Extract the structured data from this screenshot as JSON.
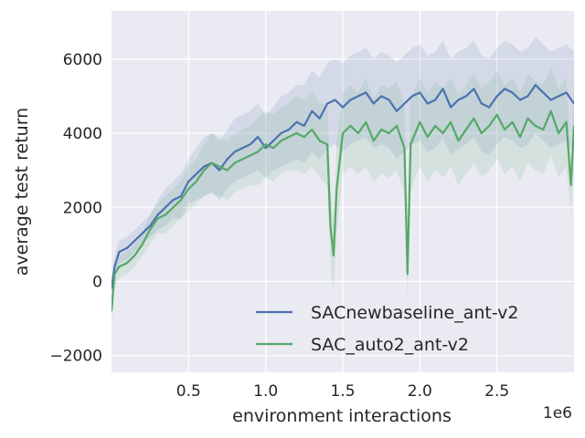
{
  "chart_data": {
    "type": "line",
    "xlabel": "environment interactions",
    "ylabel": "average test return",
    "x_offset_label": "1e6",
    "xlim": [
      0.0,
      3.0
    ],
    "ylim": [
      -2450,
      7300
    ],
    "x_ticks": [
      0.5,
      1.0,
      1.5,
      2.0,
      2.5
    ],
    "x_tick_labels": [
      "0.5",
      "1.0",
      "1.5",
      "2.0",
      "2.5"
    ],
    "y_ticks": [
      -2000,
      0,
      2000,
      4000,
      6000
    ],
    "y_tick_labels": [
      "−2000",
      "0",
      "2000",
      "4000",
      "6000"
    ],
    "grid": true,
    "legend_position": "lower-right",
    "colors": {
      "background": "#eaeaf2",
      "grid": "#ffffff",
      "SACnewbaseline_ant-v2": "#4c72b0",
      "SAC_auto2_ant-v2": "#55a868"
    },
    "series": [
      {
        "name": "SACnewbaseline_ant-v2",
        "color": "#4c72b0",
        "x": [
          0.0,
          0.02,
          0.05,
          0.1,
          0.15,
          0.2,
          0.25,
          0.3,
          0.35,
          0.4,
          0.45,
          0.5,
          0.55,
          0.6,
          0.65,
          0.7,
          0.75,
          0.8,
          0.85,
          0.9,
          0.95,
          1.0,
          1.05,
          1.1,
          1.15,
          1.2,
          1.25,
          1.3,
          1.35,
          1.4,
          1.45,
          1.5,
          1.55,
          1.6,
          1.65,
          1.7,
          1.75,
          1.8,
          1.85,
          1.9,
          1.95,
          2.0,
          2.05,
          2.1,
          2.15,
          2.2,
          2.25,
          2.3,
          2.35,
          2.4,
          2.45,
          2.5,
          2.55,
          2.6,
          2.65,
          2.7,
          2.75,
          2.8,
          2.85,
          2.9,
          2.95,
          3.0
        ],
        "y": [
          -200,
          400,
          800,
          900,
          1100,
          1300,
          1500,
          1800,
          2000,
          2200,
          2300,
          2700,
          2900,
          3100,
          3200,
          3000,
          3300,
          3500,
          3600,
          3700,
          3900,
          3600,
          3800,
          4000,
          4100,
          4300,
          4200,
          4600,
          4400,
          4800,
          4900,
          4700,
          4900,
          5000,
          5100,
          4800,
          5000,
          4900,
          4600,
          4800,
          5000,
          5100,
          4800,
          4900,
          5200,
          4700,
          4900,
          5000,
          5200,
          4800,
          4700,
          5000,
          5200,
          5100,
          4900,
          5000,
          5300,
          5100,
          4900,
          5000,
          5100,
          4800
        ],
        "band_low": [
          -500,
          100,
          500,
          600,
          800,
          1000,
          1200,
          1400,
          1500,
          1700,
          1700,
          2100,
          2200,
          2300,
          2400,
          2200,
          2500,
          2700,
          2800,
          2900,
          3000,
          2800,
          3000,
          3100,
          3200,
          3300,
          3200,
          3500,
          3300,
          3600,
          3700,
          3500,
          3700,
          3800,
          3900,
          3600,
          3700,
          3600,
          3300,
          3500,
          3700,
          3800,
          3500,
          3600,
          3900,
          3400,
          3600,
          3700,
          3900,
          3500,
          3400,
          3700,
          3900,
          3800,
          3600,
          3700,
          4000,
          3800,
          3600,
          3700,
          3800,
          3500
        ],
        "band_high": [
          100,
          700,
          1100,
          1200,
          1400,
          1600,
          1800,
          2200,
          2500,
          2700,
          2900,
          3300,
          3600,
          3900,
          4000,
          3800,
          4100,
          4400,
          4500,
          4600,
          4800,
          4500,
          4700,
          5000,
          5100,
          5300,
          5300,
          5700,
          5500,
          5900,
          6000,
          5900,
          6100,
          6200,
          6300,
          6000,
          6200,
          6100,
          5900,
          6100,
          6300,
          6400,
          6100,
          6200,
          6500,
          6000,
          6200,
          6300,
          6500,
          6100,
          6000,
          6300,
          6500,
          6400,
          6200,
          6300,
          6600,
          6400,
          6200,
          6300,
          6400,
          6200
        ]
      },
      {
        "name": "SAC_auto2_ant-v2",
        "color": "#55a868",
        "x": [
          0.0,
          0.02,
          0.05,
          0.1,
          0.15,
          0.2,
          0.25,
          0.3,
          0.35,
          0.4,
          0.45,
          0.5,
          0.55,
          0.6,
          0.65,
          0.7,
          0.75,
          0.8,
          0.85,
          0.9,
          0.95,
          1.0,
          1.05,
          1.1,
          1.15,
          1.2,
          1.25,
          1.3,
          1.35,
          1.4,
          1.42,
          1.44,
          1.46,
          1.5,
          1.55,
          1.6,
          1.65,
          1.7,
          1.75,
          1.8,
          1.85,
          1.9,
          1.92,
          1.94,
          1.97,
          2.0,
          2.05,
          2.1,
          2.15,
          2.2,
          2.25,
          2.3,
          2.35,
          2.4,
          2.45,
          2.5,
          2.55,
          2.6,
          2.65,
          2.7,
          2.75,
          2.8,
          2.85,
          2.9,
          2.95,
          2.98,
          3.0
        ],
        "y": [
          -800,
          200,
          400,
          500,
          700,
          1000,
          1400,
          1700,
          1800,
          2000,
          2200,
          2500,
          2700,
          3000,
          3200,
          3100,
          3000,
          3200,
          3300,
          3400,
          3500,
          3700,
          3600,
          3800,
          3900,
          4000,
          3900,
          4100,
          3800,
          3700,
          1500,
          700,
          2500,
          4000,
          4200,
          4000,
          4300,
          3800,
          4100,
          4000,
          4200,
          3600,
          200,
          3700,
          4000,
          4300,
          3900,
          4200,
          4000,
          4300,
          3800,
          4100,
          4400,
          4000,
          4200,
          4500,
          4100,
          4300,
          3900,
          4400,
          4200,
          4100,
          4600,
          4000,
          4300,
          2600,
          4200
        ],
        "band_low": [
          -1100,
          -100,
          100,
          200,
          400,
          700,
          1000,
          1300,
          1300,
          1500,
          1700,
          1900,
          2100,
          2300,
          2400,
          2300,
          2200,
          2400,
          2500,
          2600,
          2600,
          2800,
          2700,
          2900,
          3000,
          3000,
          2900,
          3100,
          2800,
          2600,
          400,
          -300,
          1200,
          2900,
          3100,
          2900,
          3100,
          2700,
          2900,
          2800,
          3000,
          2400,
          -500,
          2400,
          2800,
          3100,
          2700,
          3000,
          2800,
          3100,
          2600,
          2900,
          3200,
          2800,
          3000,
          3300,
          2900,
          3100,
          2700,
          3200,
          3000,
          2900,
          3400,
          2800,
          3100,
          1800,
          3000
        ],
        "band_high": [
          -500,
          500,
          700,
          800,
          1000,
          1300,
          1800,
          2100,
          2300,
          2500,
          2700,
          3100,
          3300,
          3700,
          4000,
          3900,
          3800,
          4000,
          4100,
          4200,
          4400,
          4600,
          4500,
          4700,
          4800,
          5000,
          4900,
          5100,
          4800,
          4800,
          2600,
          1700,
          3800,
          5100,
          5300,
          5100,
          5500,
          4900,
          5300,
          5200,
          5400,
          4800,
          900,
          5000,
          5200,
          5500,
          5100,
          5400,
          5200,
          5500,
          5000,
          5300,
          5600,
          5200,
          5400,
          5700,
          5300,
          5500,
          5100,
          5600,
          5400,
          5300,
          5800,
          5200,
          5500,
          3400,
          5400
        ]
      }
    ]
  }
}
